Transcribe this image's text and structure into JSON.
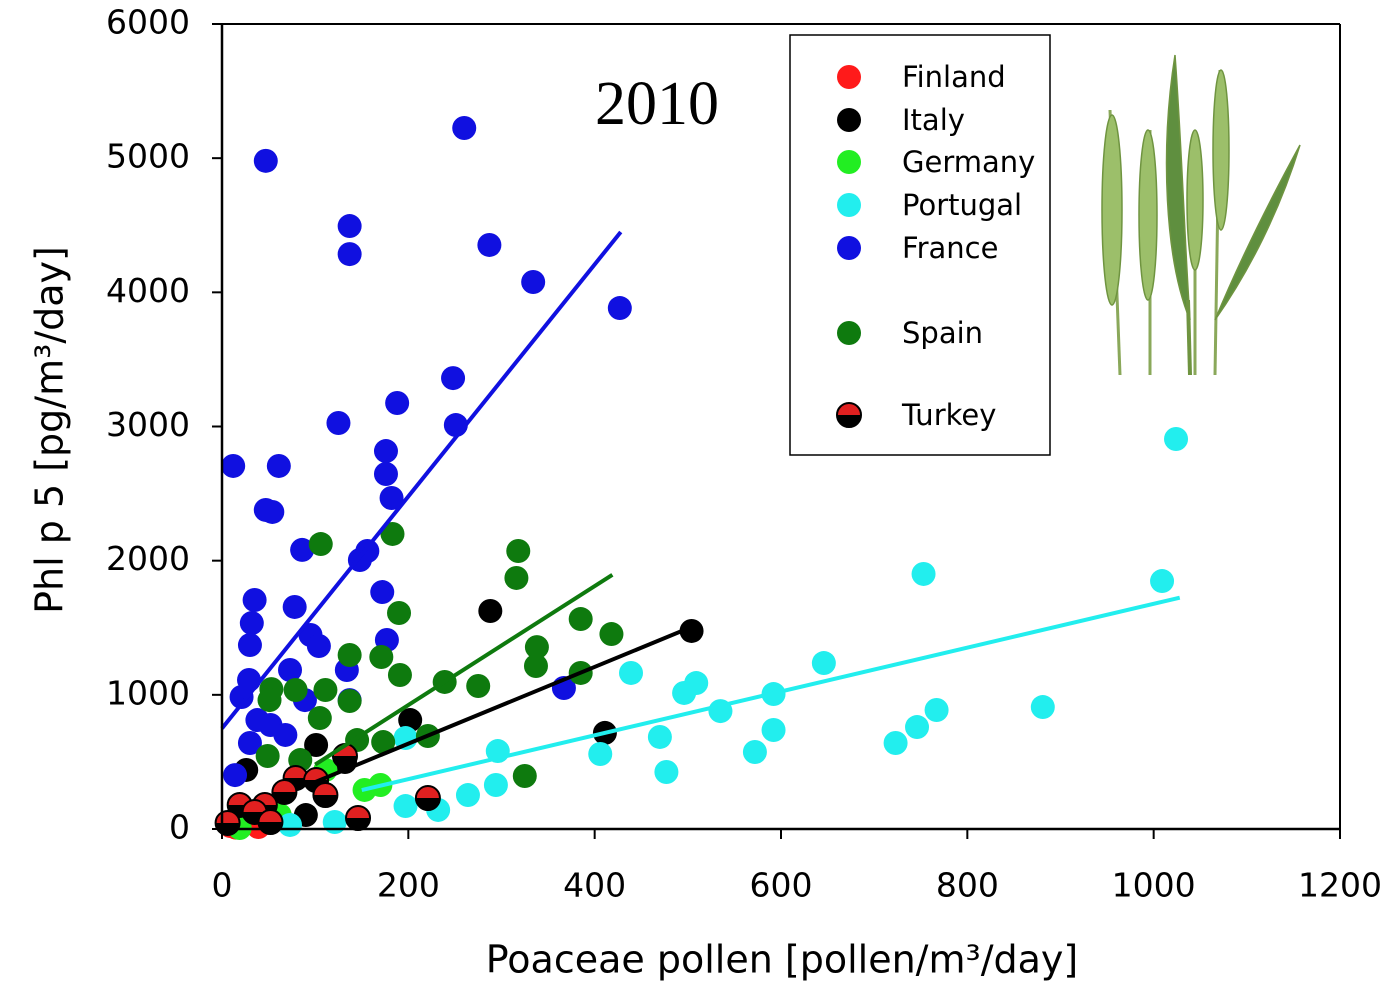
{
  "chart_data": {
    "type": "scatter",
    "annotation": "2010",
    "x_label": "Poaceae pollen [pollen/m³/day]",
    "y_label": "Phl p 5 [pg/m³/day]",
    "xlim": [
      0,
      1200
    ],
    "ylim": [
      0,
      6000
    ],
    "xticks": [
      0,
      200,
      400,
      600,
      800,
      1000,
      1200
    ],
    "yticks": [
      0,
      1000,
      2000,
      3000,
      4000,
      5000,
      6000
    ],
    "legend": "upper right",
    "series": [
      {
        "name": "Finland",
        "color": "#ff1a1a",
        "x": [
          39,
          9,
          25,
          15
        ],
        "y": [
          15,
          22,
          40,
          10
        ]
      },
      {
        "name": "Italy",
        "color": "#000000",
        "x": [
          288,
          504,
          202,
          411,
          101,
          26,
          132,
          90
        ],
        "y": [
          1625,
          1476,
          812,
          716,
          626,
          440,
          499,
          104
        ],
        "fit": {
          "x": [
            100,
            502
          ],
          "y": [
            350,
            1500
          ]
        }
      },
      {
        "name": "Germany",
        "color": "#22ee22",
        "x": [
          170,
          153,
          111,
          62,
          19
        ],
        "y": [
          328,
          291,
          440,
          104,
          7
        ]
      },
      {
        "name": "Portugal",
        "color": "#22eeee",
        "x": [
          1024,
          753,
          1009,
          646,
          439,
          509,
          496,
          592,
          535,
          470,
          592,
          767,
          746,
          723,
          881,
          572,
          406,
          296,
          294,
          477,
          264,
          197,
          197,
          232,
          121,
          73
        ],
        "y": [
          2907,
          1901,
          1848,
          1237,
          1163,
          1088,
          1014,
          1006,
          879,
          686,
          738,
          887,
          760,
          641,
          909,
          574,
          559,
          581,
          328,
          425,
          253,
          678,
          171,
          142,
          52,
          30
        ],
        "fit": {
          "x": [
            150,
            1028
          ],
          "y": [
            290,
            1724
          ]
        }
      },
      {
        "name": "France",
        "color": "#1010e0",
        "x": [
          47,
          260,
          137,
          137,
          287,
          334,
          427,
          248,
          251,
          125,
          188,
          176,
          176,
          182,
          12,
          61,
          47,
          54,
          86,
          148,
          156,
          35,
          32,
          30,
          78,
          95,
          104,
          172,
          177,
          73,
          29,
          21,
          134,
          367,
          38,
          52,
          30,
          14,
          137,
          89,
          68
        ],
        "y": [
          4980,
          5225,
          4494,
          4285,
          4353,
          4077,
          3883,
          3361,
          3011,
          3026,
          3175,
          2817,
          2646,
          2467,
          2706,
          2706,
          2378,
          2363,
          2080,
          2005,
          2072,
          1707,
          1535,
          1371,
          1655,
          1446,
          1364,
          1766,
          1409,
          1185,
          1111,
          984,
          1185,
          1051,
          812,
          775,
          641,
          402,
          961,
          961,
          701
        ],
        "fit": {
          "x": [
            0,
            428
          ],
          "y": [
            750,
            4450
          ]
        }
      },
      {
        "name": "Spain",
        "color": "#0e7a0e",
        "x": [
          106,
          183,
          318,
          316,
          190,
          385,
          418,
          338,
          337,
          137,
          171,
          191,
          385,
          239,
          275,
          53,
          79,
          111,
          137,
          105,
          51,
          145,
          173,
          221,
          325,
          49,
          84
        ],
        "y": [
          2124,
          2199,
          2072,
          1871,
          1610,
          1565,
          1453,
          1356,
          1215,
          1297,
          1282,
          1148,
          1163,
          1096,
          1066,
          1043,
          1036,
          1036,
          954,
          827,
          961,
          663,
          648,
          693,
          395,
          544,
          514
        ],
        "fit": {
          "x": [
            100,
            419
          ],
          "y": [
            480,
            1895
          ]
        }
      },
      {
        "name": "Turkey",
        "color": "#e02020",
        "edgecolor": "#000000",
        "x": [
          132,
          221,
          146,
          79,
          101,
          111,
          67,
          46,
          19,
          35,
          6,
          52
        ],
        "y": [
          544,
          231,
          82,
          380,
          365,
          253,
          276,
          179,
          179,
          127,
          45,
          52
        ]
      }
    ]
  }
}
